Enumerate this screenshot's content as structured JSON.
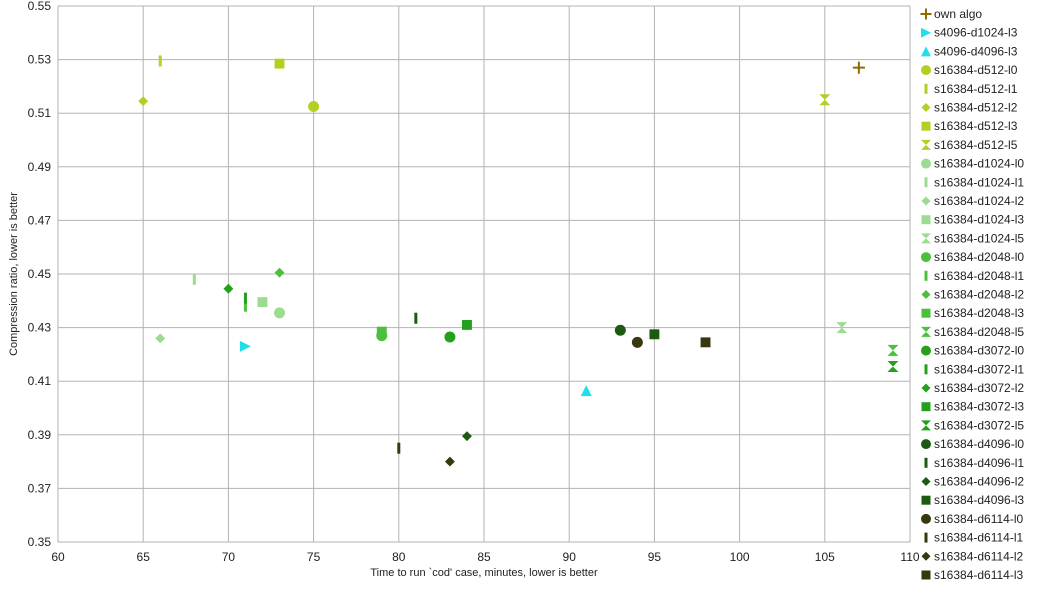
{
  "chart_data": {
    "type": "scatter",
    "title": "",
    "xlabel": "Time to run `cod' case, minutes, lower is better",
    "ylabel": "Compression ratio, lower is better",
    "xlim": [
      60,
      110
    ],
    "ylim": [
      0.35,
      0.55
    ],
    "xticks": [
      60,
      65,
      70,
      75,
      80,
      85,
      90,
      95,
      100,
      105,
      110
    ],
    "yticks": [
      0.35,
      0.37,
      0.39,
      0.41,
      0.43,
      0.45,
      0.47,
      0.49,
      0.51,
      0.53,
      0.55
    ],
    "ytick_labels": [
      "0.35",
      "0.37",
      "0.39",
      "0.41",
      "0.43",
      "0.45",
      "0.47",
      "0.49",
      "0.51",
      "0.53",
      "0.55"
    ],
    "grid": true,
    "legend_position": "right",
    "series": [
      {
        "name": "own algo",
        "marker": "plus",
        "color": "#8b6d00",
        "points": [
          [
            107,
            0.527
          ]
        ]
      },
      {
        "name": "s4096-d1024-l3",
        "marker": "triangle-right",
        "color": "#1fe0ea",
        "points": [
          [
            71,
            0.423
          ]
        ]
      },
      {
        "name": "s4096-d4096-l3",
        "marker": "triangle-up",
        "color": "#1fe0ea",
        "points": [
          [
            91,
            0.4065
          ]
        ]
      },
      {
        "name": "s16384-d512-l0",
        "marker": "circle",
        "color": "#b4cf22",
        "points": [
          [
            75,
            0.5125
          ]
        ]
      },
      {
        "name": "s16384-d512-l1",
        "marker": "bar",
        "color": "#b4cf22",
        "points": [
          [
            66,
            0.5295
          ]
        ]
      },
      {
        "name": "s16384-d512-l2",
        "marker": "diamond",
        "color": "#b4cf22",
        "points": [
          [
            65,
            0.5145
          ]
        ]
      },
      {
        "name": "s16384-d512-l3",
        "marker": "square",
        "color": "#b4cf22",
        "points": [
          [
            73,
            0.5285
          ]
        ]
      },
      {
        "name": "s16384-d512-l5",
        "marker": "hourglass",
        "color": "#b4cf22",
        "points": [
          [
            105,
            0.515
          ]
        ]
      },
      {
        "name": "s16384-d1024-l0",
        "marker": "circle",
        "color": "#9cdc90",
        "points": [
          [
            73,
            0.4355
          ]
        ]
      },
      {
        "name": "s16384-d1024-l1",
        "marker": "bar",
        "color": "#9cdc90",
        "points": [
          [
            68,
            0.448
          ]
        ]
      },
      {
        "name": "s16384-d1024-l2",
        "marker": "diamond",
        "color": "#9cdc90",
        "points": [
          [
            66,
            0.426
          ]
        ]
      },
      {
        "name": "s16384-d1024-l3",
        "marker": "square",
        "color": "#9cdc90",
        "points": [
          [
            72,
            0.4395
          ]
        ]
      },
      {
        "name": "s16384-d1024-l5",
        "marker": "hourglass",
        "color": "#9cdc90",
        "points": [
          [
            106,
            0.43
          ]
        ]
      },
      {
        "name": "s16384-d2048-l0",
        "marker": "circle",
        "color": "#4cc03c",
        "points": [
          [
            79,
            0.427
          ]
        ]
      },
      {
        "name": "s16384-d2048-l1",
        "marker": "bar",
        "color": "#4cc03c",
        "points": [
          [
            71,
            0.438
          ]
        ]
      },
      {
        "name": "s16384-d2048-l2",
        "marker": "diamond",
        "color": "#4cc03c",
        "points": [
          [
            73,
            0.4505
          ]
        ]
      },
      {
        "name": "s16384-d2048-l3",
        "marker": "square",
        "color": "#4cc03c",
        "points": [
          [
            79,
            0.4285
          ]
        ]
      },
      {
        "name": "s16384-d2048-l5",
        "marker": "hourglass",
        "color": "#4cc03c",
        "points": [
          [
            109,
            0.4215
          ]
        ]
      },
      {
        "name": "s16384-d3072-l0",
        "marker": "circle",
        "color": "#24a01c",
        "points": [
          [
            83,
            0.4265
          ]
        ]
      },
      {
        "name": "s16384-d3072-l1",
        "marker": "bar",
        "color": "#24a01c",
        "points": [
          [
            71,
            0.441
          ]
        ]
      },
      {
        "name": "s16384-d3072-l2",
        "marker": "diamond",
        "color": "#24a01c",
        "points": [
          [
            70,
            0.4445
          ]
        ]
      },
      {
        "name": "s16384-d3072-l3",
        "marker": "square",
        "color": "#24a01c",
        "points": [
          [
            84,
            0.431
          ]
        ]
      },
      {
        "name": "s16384-d3072-l5",
        "marker": "hourglass",
        "color": "#24a01c",
        "points": [
          [
            109,
            0.4155
          ]
        ]
      },
      {
        "name": "s16384-d4096-l0",
        "marker": "circle",
        "color": "#1c5a12",
        "points": [
          [
            93,
            0.429
          ]
        ]
      },
      {
        "name": "s16384-d4096-l1",
        "marker": "bar",
        "color": "#1c5a12",
        "points": [
          [
            81,
            0.4335
          ]
        ]
      },
      {
        "name": "s16384-d4096-l2",
        "marker": "diamond",
        "color": "#1c5a12",
        "points": [
          [
            84,
            0.3895
          ]
        ]
      },
      {
        "name": "s16384-d4096-l3",
        "marker": "square",
        "color": "#1c5a12",
        "points": [
          [
            95,
            0.4275
          ]
        ]
      },
      {
        "name": "s16384-d6114-l0",
        "marker": "circle",
        "color": "#38380e",
        "points": [
          [
            94,
            0.4245
          ]
        ]
      },
      {
        "name": "s16384-d6114-l1",
        "marker": "bar",
        "color": "#38380e",
        "points": [
          [
            80,
            0.385
          ]
        ]
      },
      {
        "name": "s16384-d6114-l2",
        "marker": "diamond",
        "color": "#38380e",
        "points": [
          [
            83,
            0.38
          ]
        ]
      },
      {
        "name": "s16384-d6114-l3",
        "marker": "square",
        "color": "#38380e",
        "points": [
          [
            98,
            0.4245
          ]
        ]
      }
    ]
  }
}
